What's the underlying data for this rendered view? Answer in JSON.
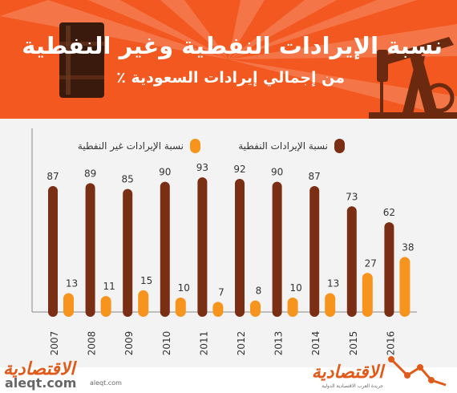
{
  "header": {
    "title": "نسبة الإيرادات النفطية وغير النفطية",
    "subtitle": "من إجمالي إيرادات السعودية ٪"
  },
  "colors": {
    "header_bg": "#f2581f",
    "oil": "#7a2e14",
    "non_oil": "#f7941d",
    "brand": "#e05a1a"
  },
  "icons": [
    "oil-barrel-icon",
    "oil-pump-jack-icon",
    "trend-line-icon"
  ],
  "chart_data": {
    "type": "bar",
    "categories": [
      "2007",
      "2008",
      "2009",
      "2010",
      "2011",
      "2012",
      "2013",
      "2014",
      "2015",
      "2016"
    ],
    "series": [
      {
        "name": "نسبة الإيرادات النفطية",
        "color": "#7a2e14",
        "values": [
          87,
          89,
          85,
          90,
          93,
          92,
          90,
          87,
          73,
          62
        ]
      },
      {
        "name": "نسبة الإيرادات غير النفطية",
        "color": "#f7941d",
        "values": [
          13,
          11,
          15,
          10,
          7,
          8,
          10,
          13,
          27,
          38
        ]
      }
    ],
    "ylim": [
      0,
      100
    ],
    "grid": false,
    "legend": "top",
    "title": "",
    "xlabel": "",
    "ylabel": ""
  },
  "footer": {
    "brand_left": "الاقتصادية",
    "site": "aleqt.com",
    "site_small": "aleqt.com",
    "brand_right": "الاقتصادية",
    "brand_right_sub": "جريدة العرب الاقتصادية الدولية"
  }
}
